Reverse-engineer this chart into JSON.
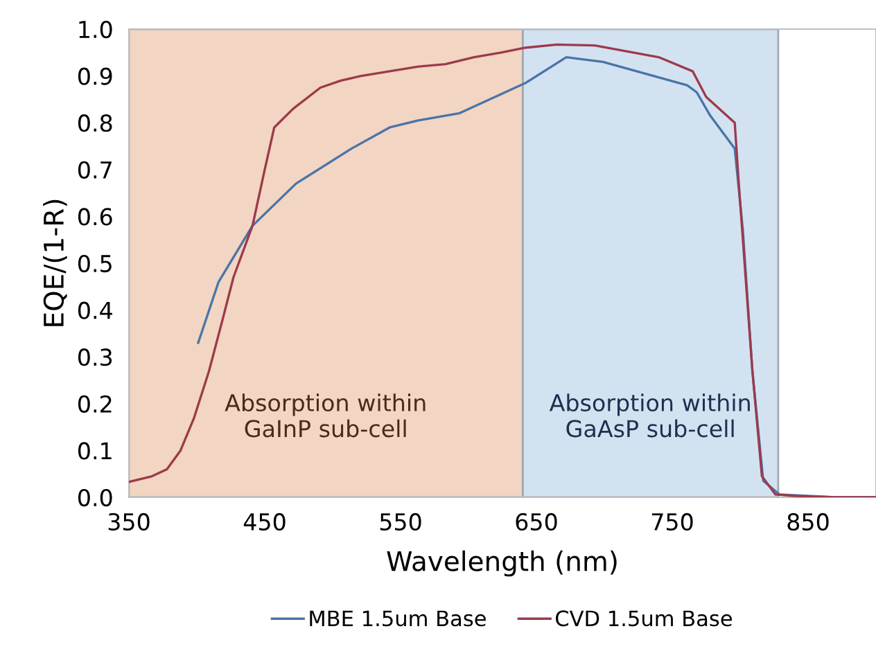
{
  "chart_data": {
    "type": "line",
    "xlabel": "Wavelength (nm)",
    "ylabel": "EQE/(1-R)",
    "xlim": [
      350,
      900
    ],
    "ylim": [
      0,
      1.0
    ],
    "xticks": [
      350,
      450,
      550,
      650,
      750,
      850
    ],
    "yticks": [
      {
        "value": 0,
        "label": "0.0"
      },
      {
        "value": 0.1,
        "label": "0.1"
      },
      {
        "value": 0.2,
        "label": "0.2"
      },
      {
        "value": 0.3,
        "label": "0.3"
      },
      {
        "value": 0.4,
        "label": "0.4"
      },
      {
        "value": 0.5,
        "label": "0.5"
      },
      {
        "value": 0.6,
        "label": "0.6"
      },
      {
        "value": 0.7,
        "label": "0.7"
      },
      {
        "value": 0.8,
        "label": "0.8"
      },
      {
        "value": 0.9,
        "label": "0.9"
      },
      {
        "value": 1.0,
        "label": "1.0"
      }
    ],
    "grid": false,
    "legend": "bottom",
    "marker": "none",
    "line_style": "solid",
    "bands": [
      {
        "axis": "x",
        "from": 350,
        "to": 640,
        "label": "Absorption within\nGaInP sub-cell",
        "color": "#f2d5c2"
      },
      {
        "axis": "x",
        "from": 640,
        "to": 828,
        "label": "Absorption within\nGaAsP sub-cell",
        "color": "#d3e2f1"
      }
    ],
    "series": [
      {
        "name": "MBE 1.5um Base",
        "color": "#4a74a8",
        "x": [
          401,
          416,
          441,
          473,
          514,
          542,
          563,
          593,
          642,
          672,
          699,
          761,
          768,
          778,
          796,
          802,
          809,
          817,
          829,
          870,
          900
        ],
        "values": [
          0.33,
          0.46,
          0.58,
          0.67,
          0.745,
          0.79,
          0.805,
          0.82,
          0.885,
          0.94,
          0.93,
          0.88,
          0.865,
          0.815,
          0.745,
          0.57,
          0.27,
          0.035,
          0.006,
          0.0,
          0.0
        ]
      },
      {
        "name": "CVD 1.5um Base",
        "color": "#9c3a4c",
        "x": [
          350,
          367,
          378,
          388,
          398,
          409,
          419,
          427,
          441,
          450,
          457,
          471,
          491,
          506,
          521,
          542,
          563,
          583,
          604,
          624,
          641,
          665,
          693,
          740,
          765,
          775,
          796,
          799,
          809,
          816,
          826,
          840,
          870,
          900
        ],
        "values": [
          0.033,
          0.045,
          0.06,
          0.1,
          0.17,
          0.27,
          0.38,
          0.47,
          0.58,
          0.7,
          0.79,
          0.83,
          0.875,
          0.89,
          0.9,
          0.91,
          0.92,
          0.925,
          0.94,
          0.95,
          0.96,
          0.967,
          0.965,
          0.94,
          0.91,
          0.855,
          0.8,
          0.67,
          0.27,
          0.045,
          0.006,
          0.003,
          0.0,
          0.0
        ]
      }
    ]
  }
}
